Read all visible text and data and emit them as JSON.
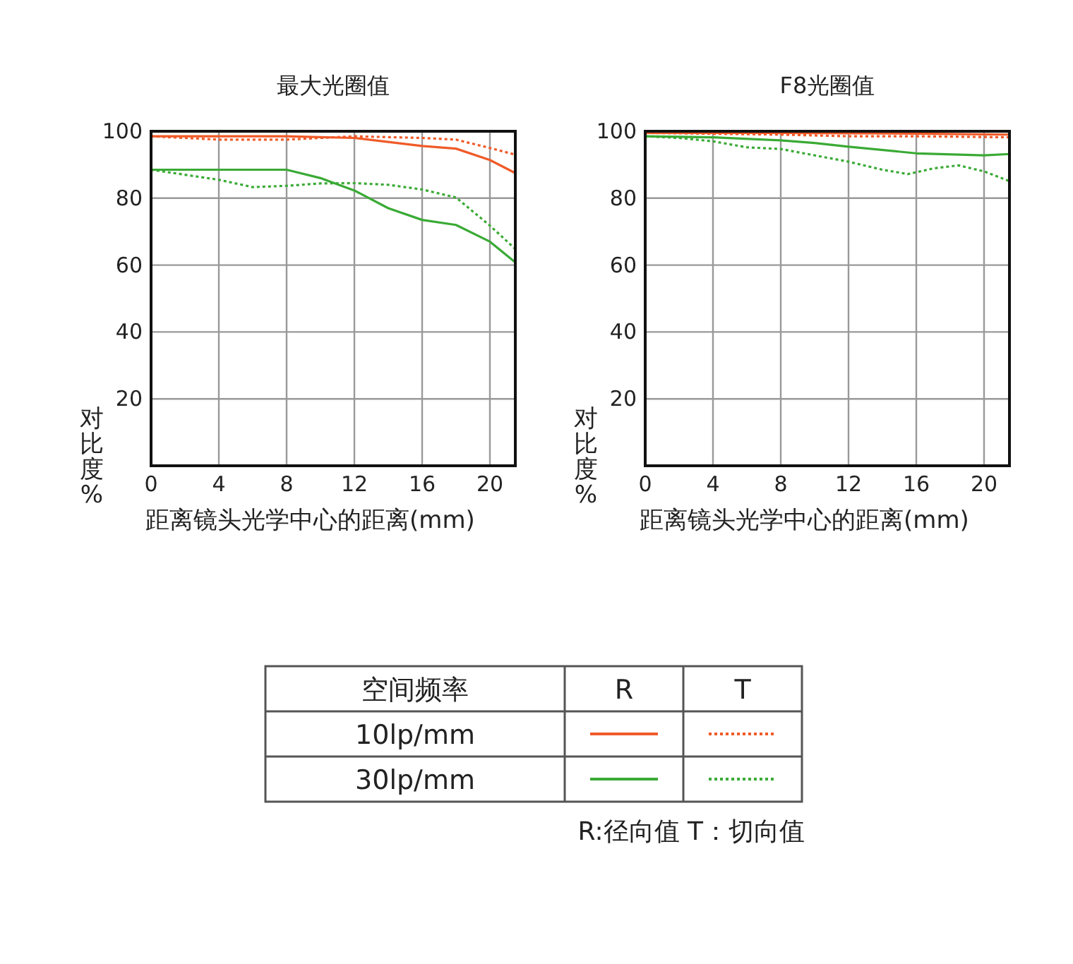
{
  "chart_data": [
    {
      "type": "line",
      "title": "最大光圈值",
      "xlabel": "距离镜头光学中心的距离(mm)",
      "ylabel": "对比度%",
      "xlim": [
        0,
        21.5
      ],
      "ylim": [
        0,
        100
      ],
      "xticks": [
        0,
        4,
        8,
        12,
        16,
        20
      ],
      "yticks": [
        20,
        40,
        60,
        80,
        100
      ],
      "grid": true,
      "legend_title": "空间频率",
      "annotations": [
        "R",
        "T",
        "10lp/mm",
        "30lp/mm",
        "R:径向值 T：切向值"
      ],
      "series": [
        {
          "color": "#f05a28",
          "line_style": "solid",
          "x": [
            0,
            4,
            8,
            12,
            16,
            18,
            20,
            21.5
          ],
          "values": [
            98.5,
            98.5,
            98.5,
            98,
            95.6,
            94.8,
            91.4,
            87.5
          ]
        },
        {
          "color": "#f05a28",
          "line_style": "dotted",
          "x": [
            0,
            4,
            8,
            12,
            16,
            18,
            20,
            21.5
          ],
          "values": [
            98.5,
            97.5,
            97.5,
            98.5,
            98,
            97.5,
            95,
            93
          ]
        },
        {
          "color": "#3aaa35",
          "line_style": "solid",
          "x": [
            0,
            4,
            8,
            10,
            12,
            14,
            16,
            18,
            20,
            21.5
          ],
          "values": [
            88.5,
            88.5,
            88.5,
            86,
            82.3,
            77,
            73.5,
            72,
            67,
            60.8
          ]
        },
        {
          "color": "#3aaa35",
          "line_style": "dotted",
          "x": [
            0,
            2,
            4,
            6,
            8,
            10,
            12,
            14,
            16,
            18,
            20,
            21.5
          ],
          "values": [
            88.5,
            87,
            85.5,
            83.3,
            83.7,
            84.4,
            84.5,
            84,
            82.6,
            80.2,
            71.8,
            64.8
          ]
        }
      ]
    },
    {
      "type": "line",
      "title": "F8光圈值",
      "xlabel": "距离镜头光学中心的距离(mm)",
      "ylabel": "对比度%",
      "xlim": [
        0,
        21.5
      ],
      "ylim": [
        0,
        100
      ],
      "xticks": [
        0,
        4,
        8,
        12,
        16,
        20
      ],
      "yticks": [
        20,
        40,
        60,
        80,
        100
      ],
      "grid": true,
      "series": [
        {
          "color": "#f05a28",
          "line_style": "solid",
          "x": [
            0,
            8,
            16,
            21.5
          ],
          "values": [
            99.5,
            99.5,
            99.3,
            99
          ]
        },
        {
          "color": "#f05a28",
          "line_style": "dotted",
          "x": [
            0,
            8,
            12,
            16,
            21.5
          ],
          "values": [
            99.5,
            99,
            98.5,
            98.5,
            98.2
          ]
        },
        {
          "color": "#3aaa35",
          "line_style": "solid",
          "x": [
            0,
            4,
            8,
            10,
            12,
            16,
            20,
            21.5
          ],
          "values": [
            98.5,
            98.2,
            97.3,
            96.5,
            95.4,
            93.4,
            92.8,
            93.2
          ]
        },
        {
          "color": "#3aaa35",
          "line_style": "dotted",
          "x": [
            0,
            2,
            4,
            6,
            8,
            10,
            12,
            14,
            15.5,
            17,
            18.5,
            20,
            21.5
          ],
          "values": [
            98.5,
            98,
            97,
            95.2,
            94.7,
            92.8,
            90.9,
            88.5,
            87.2,
            88.9,
            89.8,
            88,
            85.1
          ]
        }
      ]
    }
  ]
}
